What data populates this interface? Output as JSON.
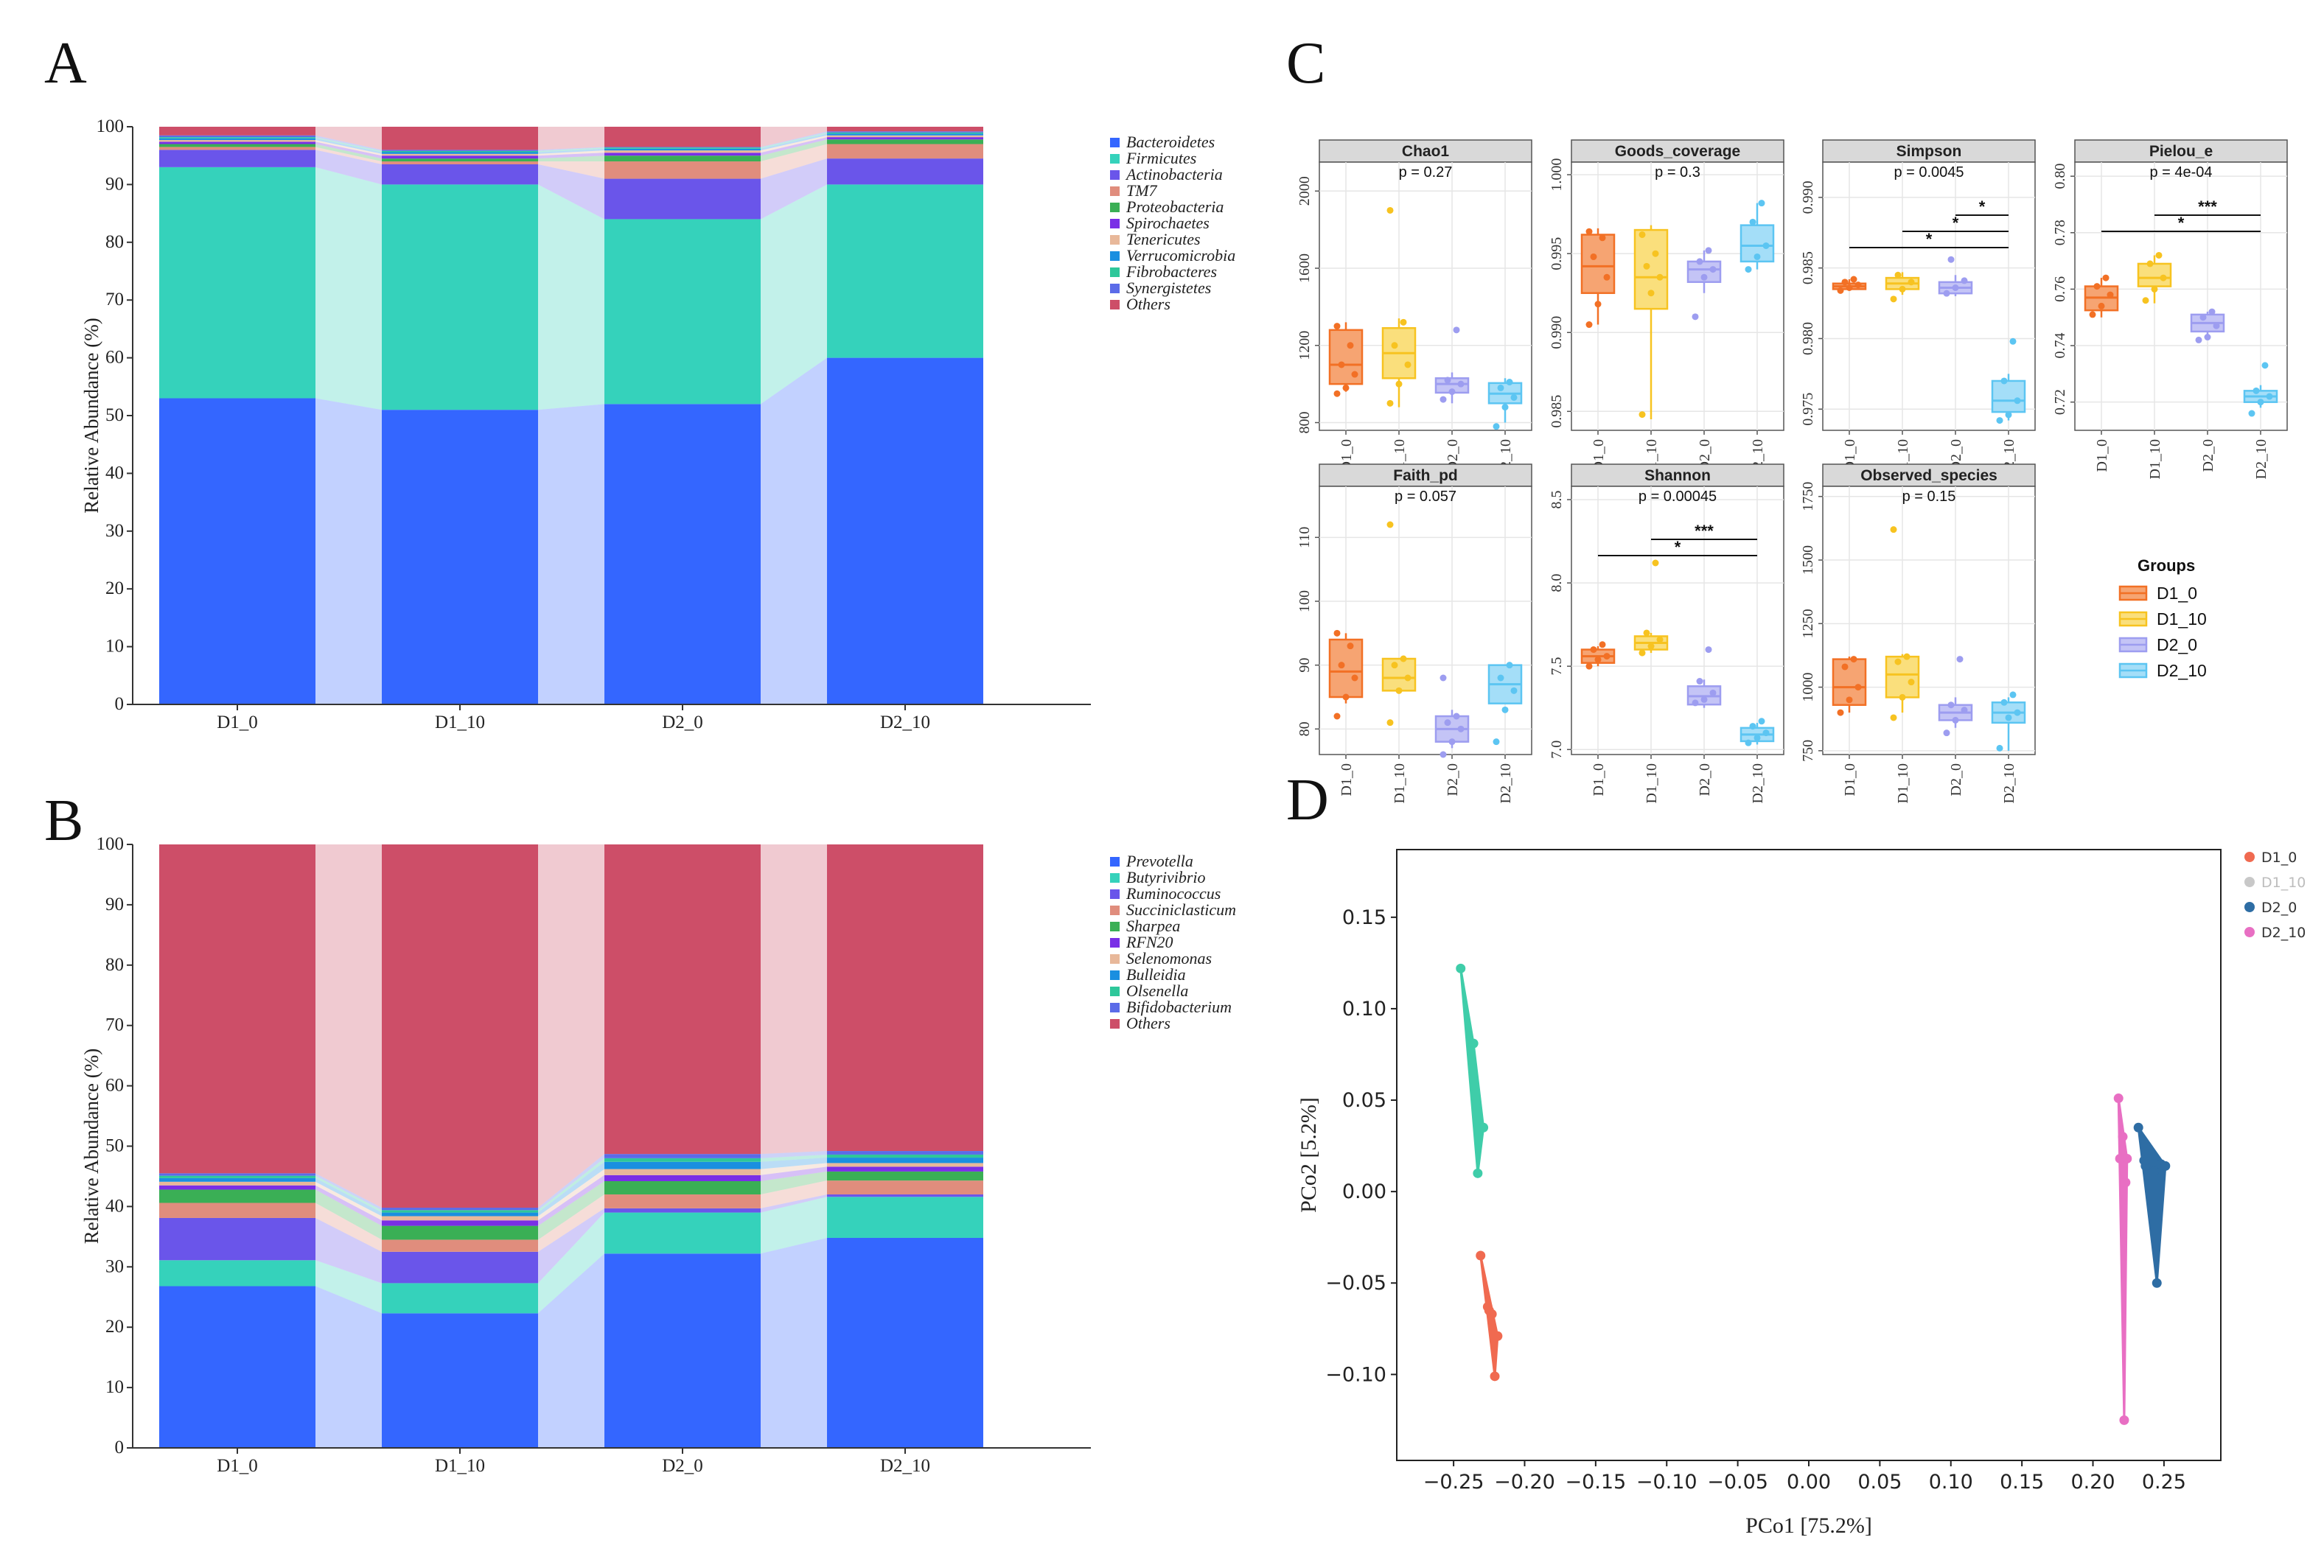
{
  "panels": {
    "a": "A",
    "b": "B",
    "c": "C",
    "d": "D"
  },
  "chart_data": [
    {
      "panel": "A",
      "type": "stacked_bar",
      "ylabel": "Relative Abundance (%)",
      "ylim": [
        0,
        100
      ],
      "yticks": [
        0,
        10,
        20,
        30,
        40,
        50,
        60,
        70,
        80,
        90,
        100
      ],
      "categories": [
        "D1_0",
        "D1_10",
        "D2_0",
        "D2_10"
      ],
      "series": [
        {
          "name": "Bacteroidetes",
          "color": "#3466ff",
          "values": [
            53.0,
            51.0,
            52.0,
            60.0
          ]
        },
        {
          "name": "Firmicutes",
          "color": "#35d2bb",
          "values": [
            40.0,
            39.0,
            32.0,
            30.0
          ]
        },
        {
          "name": "Actinobacteria",
          "color": "#6a55ea",
          "values": [
            3.0,
            3.5,
            7.0,
            4.5
          ]
        },
        {
          "name": "TM7",
          "color": "#e08d7d",
          "values": [
            0.5,
            0.5,
            3.0,
            2.5
          ]
        },
        {
          "name": "Proteobacteria",
          "color": "#3aaf55",
          "values": [
            0.5,
            0.5,
            1.0,
            0.8
          ]
        },
        {
          "name": "Spirochaetes",
          "color": "#7a2fe6",
          "values": [
            0.4,
            0.5,
            0.5,
            0.4
          ]
        },
        {
          "name": "Tenericutes",
          "color": "#e8b89a",
          "values": [
            0.3,
            0.3,
            0.4,
            0.3
          ]
        },
        {
          "name": "Verrucomicrobia",
          "color": "#1a8fe0",
          "values": [
            0.3,
            0.3,
            0.3,
            0.3
          ]
        },
        {
          "name": "Fibrobacteres",
          "color": "#2ec79a",
          "values": [
            0.2,
            0.2,
            0.2,
            0.2
          ]
        },
        {
          "name": "Synergistetes",
          "color": "#5b6be8",
          "values": [
            0.3,
            0.2,
            0.1,
            0.2
          ]
        },
        {
          "name": "Others",
          "color": "#cd4e68",
          "values": [
            1.5,
            4.0,
            3.5,
            0.8
          ]
        }
      ]
    },
    {
      "panel": "B",
      "type": "stacked_bar",
      "ylabel": "Relative Abundance (%)",
      "ylim": [
        0,
        100
      ],
      "yticks": [
        0,
        10,
        20,
        30,
        40,
        50,
        60,
        70,
        80,
        90,
        100
      ],
      "categories": [
        "D1_0",
        "D1_10",
        "D2_0",
        "D2_10"
      ],
      "series": [
        {
          "name": "Prevotella",
          "color": "#3466ff",
          "values": [
            26.8,
            22.3,
            32.2,
            34.8
          ]
        },
        {
          "name": "Butyrivibrio",
          "color": "#35d2bb",
          "values": [
            4.3,
            5.0,
            6.8,
            6.8
          ]
        },
        {
          "name": "Ruminococcus",
          "color": "#6a55ea",
          "values": [
            7.0,
            5.2,
            0.7,
            0.4
          ]
        },
        {
          "name": "Succiniclasticum",
          "color": "#e08d7d",
          "values": [
            2.5,
            2.0,
            2.3,
            2.3
          ]
        },
        {
          "name": "Sharpea",
          "color": "#3aaf55",
          "values": [
            2.2,
            2.3,
            2.2,
            1.5
          ]
        },
        {
          "name": "RFN20",
          "color": "#7a2fe6",
          "values": [
            0.7,
            0.9,
            1.0,
            0.8
          ]
        },
        {
          "name": "Selenomonas",
          "color": "#e8b89a",
          "values": [
            0.6,
            0.7,
            1.0,
            0.6
          ]
        },
        {
          "name": "Bulleidia",
          "color": "#1a8fe0",
          "values": [
            0.6,
            0.6,
            1.2,
            0.9
          ]
        },
        {
          "name": "Olsenella",
          "color": "#2ec79a",
          "values": [
            0.4,
            0.4,
            0.6,
            0.5
          ]
        },
        {
          "name": "Bifidobacterium",
          "color": "#5b6be8",
          "values": [
            0.4,
            0.4,
            0.7,
            0.6
          ]
        },
        {
          "name": "Others",
          "color": "#cd4e68",
          "values": [
            54.5,
            60.2,
            51.3,
            50.8
          ]
        }
      ]
    },
    {
      "panel": "C",
      "type": "boxplot",
      "groups_title": "Groups",
      "groups": [
        "D1_0",
        "D1_10",
        "D2_0",
        "D2_10"
      ],
      "group_colors": [
        "#f27025",
        "#f7c320",
        "#9d9df0",
        "#5cc5f2"
      ],
      "group_fills": [
        "#f6a472",
        "#fadf7c",
        "#c4c4f6",
        "#a4def8"
      ],
      "facets": [
        {
          "title": "Chao1",
          "p": "p = 0.27",
          "ylim": [
            760,
            2150
          ],
          "yticks": [
            800,
            1200,
            1600,
            2000
          ],
          "ytick_labels": [
            "800",
            "1200",
            "1600",
            "2000"
          ],
          "boxes": [
            [
              960,
              1000,
              1100,
              1280,
              1320
            ],
            [
              880,
              1030,
              1160,
              1290,
              1340
            ],
            [
              900,
              955,
              1000,
              1030,
              1060
            ],
            [
              800,
              900,
              950,
              1005,
              1030
            ]
          ],
          "points": [
            [
              950,
              980,
              1050,
              1100,
              1200,
              1300
            ],
            [
              900,
              1000,
              1100,
              1200,
              1320,
              1900
            ],
            [
              920,
              960,
              1000,
              1020,
              1280
            ],
            [
              780,
              880,
              930,
              980,
              1010
            ]
          ],
          "sig": []
        },
        {
          "title": "Goods_coverage",
          "p": "p = 0.3",
          "ylim": [
            0.9838,
            1.0008
          ],
          "yticks": [
            0.985,
            0.99,
            0.995,
            1.0
          ],
          "ytick_labels": [
            "0.985",
            "0.990",
            "0.995",
            "1.000"
          ],
          "boxes": [
            [
              0.9905,
              0.9925,
              0.9942,
              0.9962,
              0.9966
            ],
            [
              0.9845,
              0.9915,
              0.9935,
              0.9965,
              0.9968
            ],
            [
              0.9925,
              0.9932,
              0.994,
              0.9945,
              0.9952
            ],
            [
              0.994,
              0.9945,
              0.9955,
              0.9968,
              0.9982
            ]
          ],
          "points": [
            [
              0.9905,
              0.9918,
              0.9935,
              0.9948,
              0.996,
              0.9964
            ],
            [
              0.9848,
              0.9925,
              0.9935,
              0.9942,
              0.995,
              0.9962
            ],
            [
              0.991,
              0.9935,
              0.994,
              0.9945,
              0.9952
            ],
            [
              0.994,
              0.9948,
              0.9955,
              0.997,
              0.9982
            ]
          ],
          "sig": []
        },
        {
          "title": "Simpson",
          "p": "p = 0.0045",
          "ylim": [
            0.9735,
            0.9925
          ],
          "yticks": [
            0.975,
            0.98,
            0.985,
            0.99
          ],
          "ytick_labels": [
            "0.975",
            "0.980",
            "0.985",
            "0.990"
          ],
          "boxes": [
            [
              0.9834,
              0.9835,
              0.9837,
              0.9839,
              0.9842
            ],
            [
              0.9831,
              0.9835,
              0.9839,
              0.9843,
              0.9847
            ],
            [
              0.983,
              0.9832,
              0.9836,
              0.984,
              0.9845
            ],
            [
              0.9742,
              0.9748,
              0.9756,
              0.977,
              0.9775
            ]
          ],
          "points": [
            [
              0.9834,
              0.9836,
              0.9838,
              0.984,
              0.9842
            ],
            [
              0.9828,
              0.9835,
              0.984,
              0.9845
            ],
            [
              0.9832,
              0.9836,
              0.9841,
              0.9856
            ],
            [
              0.9742,
              0.9746,
              0.9756,
              0.977,
              0.9798
            ]
          ],
          "sig": [
            {
              "from": 2,
              "to": 3,
              "label": "*"
            },
            {
              "from": 1,
              "to": 3,
              "label": "*"
            },
            {
              "from": 0,
              "to": 3,
              "label": "*"
            }
          ]
        },
        {
          "title": "Pielou_e",
          "p": "p = 4e-04",
          "ylim": [
            0.71,
            0.805
          ],
          "yticks": [
            0.72,
            0.74,
            0.76,
            0.78,
            0.8
          ],
          "ytick_labels": [
            "0.72",
            "0.74",
            "0.76",
            "0.78",
            "0.80"
          ],
          "boxes": [
            [
              0.75,
              0.7525,
              0.757,
              0.761,
              0.764
            ],
            [
              0.755,
              0.761,
              0.764,
              0.769,
              0.772
            ],
            [
              0.742,
              0.745,
              0.748,
              0.751,
              0.752
            ],
            [
              0.718,
              0.72,
              0.722,
              0.724,
              0.726
            ]
          ],
          "points": [
            [
              0.751,
              0.754,
              0.758,
              0.761,
              0.764
            ],
            [
              0.756,
              0.76,
              0.764,
              0.769,
              0.772
            ],
            [
              0.742,
              0.743,
              0.747,
              0.75,
              0.752
            ],
            [
              0.716,
              0.72,
              0.722,
              0.724,
              0.733
            ]
          ],
          "sig": [
            {
              "from": 1,
              "to": 3,
              "label": "***"
            },
            {
              "from": 0,
              "to": 3,
              "label": "*"
            }
          ]
        },
        {
          "title": "Faith_pd",
          "p": "p = 0.057",
          "ylim": [
            76,
            118
          ],
          "yticks": [
            80,
            90,
            100,
            110
          ],
          "ytick_labels": [
            "80",
            "90",
            "100",
            "110"
          ],
          "boxes": [
            [
              84,
              85,
              89,
              94,
              95
            ],
            [
              86,
              86,
              88,
              91,
              91
            ],
            [
              77,
              78,
              80,
              82,
              83
            ],
            [
              84,
              84,
              87,
              90,
              90
            ]
          ],
          "points": [
            [
              82,
              85,
              88,
              90,
              93,
              95
            ],
            [
              81,
              86,
              88,
              90,
              91,
              112
            ],
            [
              76,
              78,
              80,
              81,
              82,
              88
            ],
            [
              78,
              83,
              86,
              88,
              90
            ]
          ],
          "sig": []
        },
        {
          "title": "Shannon",
          "p": "p = 0.00045",
          "ylim": [
            6.97,
            8.58
          ],
          "yticks": [
            7.0,
            7.5,
            8.0,
            8.5
          ],
          "ytick_labels": [
            "7.0",
            "7.5",
            "8.0",
            "8.5"
          ],
          "boxes": [
            [
              7.5,
              7.52,
              7.56,
              7.6,
              7.62
            ],
            [
              7.58,
              7.6,
              7.64,
              7.68,
              7.7
            ],
            [
              7.25,
              7.27,
              7.32,
              7.38,
              7.42
            ],
            [
              7.03,
              7.05,
              7.09,
              7.13,
              7.16
            ]
          ],
          "points": [
            [
              7.5,
              7.54,
              7.56,
              7.6,
              7.63
            ],
            [
              7.58,
              7.62,
              7.66,
              7.7,
              8.12
            ],
            [
              7.28,
              7.3,
              7.34,
              7.41,
              7.6
            ],
            [
              7.04,
              7.07,
              7.1,
              7.14,
              7.17
            ]
          ],
          "sig": [
            {
              "from": 1,
              "to": 3,
              "label": "***"
            },
            {
              "from": 0,
              "to": 3,
              "label": "*"
            }
          ]
        },
        {
          "title": "Observed_species",
          "p": "p = 0.15",
          "ylim": [
            735,
            1790
          ],
          "yticks": [
            750,
            1000,
            1250,
            1500,
            1750
          ],
          "ytick_labels": [
            "750",
            "1000",
            "1250",
            "1500",
            "1750"
          ],
          "boxes": [
            [
              900,
              930,
              1000,
              1110,
              1120
            ],
            [
              900,
              960,
              1050,
              1120,
              1130
            ],
            [
              840,
              870,
              900,
              930,
              960
            ],
            [
              750,
              860,
              900,
              940,
              960
            ]
          ],
          "points": [
            [
              900,
              950,
              1000,
              1080,
              1110
            ],
            [
              880,
              960,
              1020,
              1100,
              1120,
              1620
            ],
            [
              820,
              870,
              910,
              930,
              1110
            ],
            [
              760,
              880,
              900,
              940,
              970
            ]
          ],
          "sig": []
        }
      ]
    },
    {
      "panel": "D",
      "type": "scatter",
      "xlabel": "PCo1 [75.2%]",
      "ylabel": "PCo2 [5.2%]",
      "xlim": [
        -0.29,
        0.29
      ],
      "ylim": [
        -0.147,
        0.187
      ],
      "xticks": [
        -0.25,
        -0.2,
        -0.15,
        -0.1,
        -0.05,
        0.0,
        0.05,
        0.1,
        0.15,
        0.2,
        0.25
      ],
      "xtick_labels": [
        "−0.25",
        "−0.20",
        "−0.15",
        "−0.10",
        "−0.05",
        "0.00",
        "0.05",
        "0.10",
        "0.15",
        "0.20",
        "0.25"
      ],
      "yticks": [
        -0.1,
        -0.05,
        0.0,
        0.05,
        0.1,
        0.15
      ],
      "ytick_labels": [
        "−0.10",
        "−0.05",
        "0.00",
        "0.05",
        "0.10",
        "0.15"
      ],
      "series": [
        {
          "name": "D1_0",
          "color": "#f06a50",
          "x": [
            -0.231,
            -0.226,
            -0.223,
            -0.219,
            -0.221,
            -0.225
          ],
          "y": [
            -0.035,
            -0.063,
            -0.067,
            -0.079,
            -0.101,
            -0.065
          ]
        },
        {
          "name": "D1_10",
          "color": "#3fcda9",
          "legend_color": "#c8c8c8",
          "x": [
            -0.245,
            -0.236,
            -0.229,
            -0.233
          ],
          "y": [
            0.122,
            0.081,
            0.035,
            0.01
          ]
        },
        {
          "name": "D2_0",
          "color": "#2e6da4",
          "x": [
            0.232,
            0.237,
            0.248,
            0.245,
            0.251,
            0.236,
            0.243
          ],
          "y": [
            0.035,
            0.014,
            0.015,
            -0.05,
            0.014,
            0.017,
            0.011
          ]
        },
        {
          "name": "D2_10",
          "color": "#e86fc3",
          "x": [
            0.218,
            0.221,
            0.224,
            0.219,
            0.222,
            0.223
          ],
          "y": [
            0.051,
            0.03,
            0.018,
            0.018,
            -0.125,
            0.005
          ]
        }
      ]
    }
  ]
}
